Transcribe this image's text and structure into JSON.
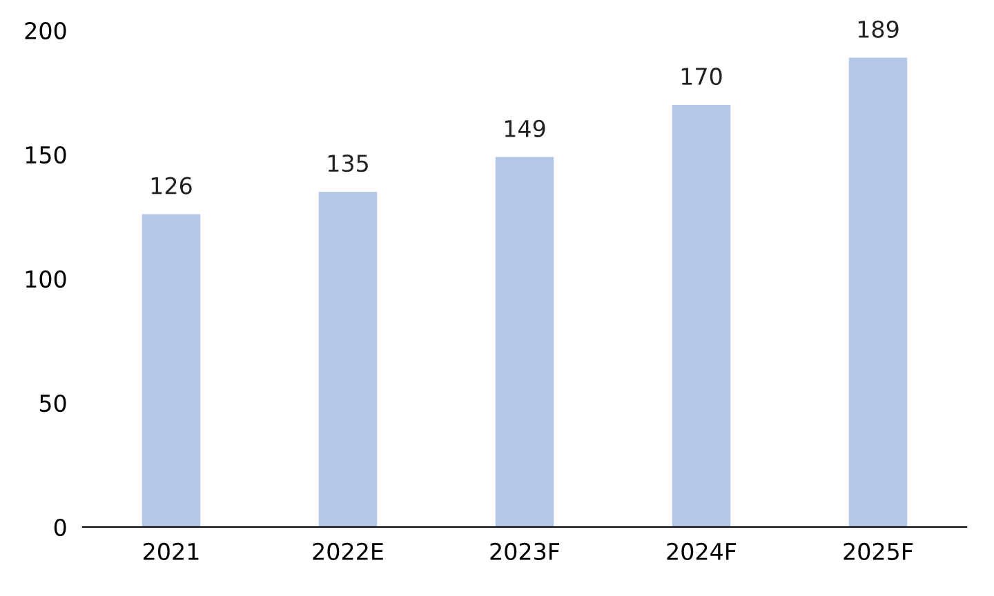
{
  "chart_data": {
    "type": "bar",
    "categories": [
      "2021",
      "2022E",
      "2023F",
      "2024F",
      "2025F"
    ],
    "values": [
      126,
      135,
      149,
      170,
      189
    ],
    "color": "#b4c7e7",
    "ylim": [
      0,
      200
    ],
    "yticks": [
      0,
      50,
      100,
      150,
      200
    ],
    "data_labels": true,
    "grid": false,
    "legend": false
  }
}
